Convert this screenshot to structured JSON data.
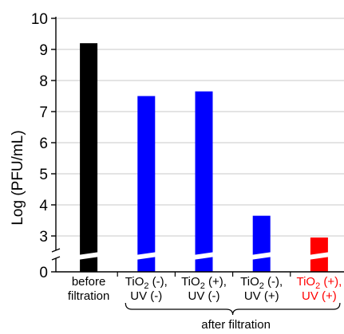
{
  "chart_data": {
    "type": "bar",
    "ylabel": "Log (PFU/mL)",
    "y_axis": {
      "broken": true,
      "break_between": [
        0,
        2.5
      ],
      "ticks": [
        0,
        3,
        4,
        5,
        6,
        7,
        8,
        9,
        10
      ]
    },
    "grid": true,
    "categories": [
      {
        "lines": [
          {
            "parts": [
              {
                "text": "before"
              }
            ]
          },
          {
            "parts": [
              {
                "text": "filtration"
              }
            ]
          }
        ],
        "color": "#000000"
      },
      {
        "lines": [
          {
            "parts": [
              {
                "text": "TiO"
              },
              {
                "text": "2",
                "sub": true
              },
              {
                "text": " (-),"
              }
            ]
          },
          {
            "parts": [
              {
                "text": "UV (-)"
              }
            ]
          }
        ],
        "color": "#000000"
      },
      {
        "lines": [
          {
            "parts": [
              {
                "text": "TiO"
              },
              {
                "text": "2",
                "sub": true
              },
              {
                "text": " (+),"
              }
            ]
          },
          {
            "parts": [
              {
                "text": "UV (-)"
              }
            ]
          }
        ],
        "color": "#000000"
      },
      {
        "lines": [
          {
            "parts": [
              {
                "text": "TiO"
              },
              {
                "text": "2",
                "sub": true
              },
              {
                "text": " (-),"
              }
            ]
          },
          {
            "parts": [
              {
                "text": "UV (+)"
              }
            ]
          }
        ],
        "color": "#000000"
      },
      {
        "lines": [
          {
            "parts": [
              {
                "text": "TiO"
              },
              {
                "text": "2",
                "sub": true
              },
              {
                "text": " (+),"
              }
            ]
          },
          {
            "parts": [
              {
                "text": "UV (+)"
              }
            ]
          }
        ],
        "color": "#ff0000"
      }
    ],
    "values": [
      9.2,
      7.5,
      7.65,
      3.65,
      2.95
    ],
    "bar_colors": [
      "#000000",
      "#0000ff",
      "#0000ff",
      "#0000ff",
      "#ff0000"
    ],
    "group_label": "after filtration"
  }
}
